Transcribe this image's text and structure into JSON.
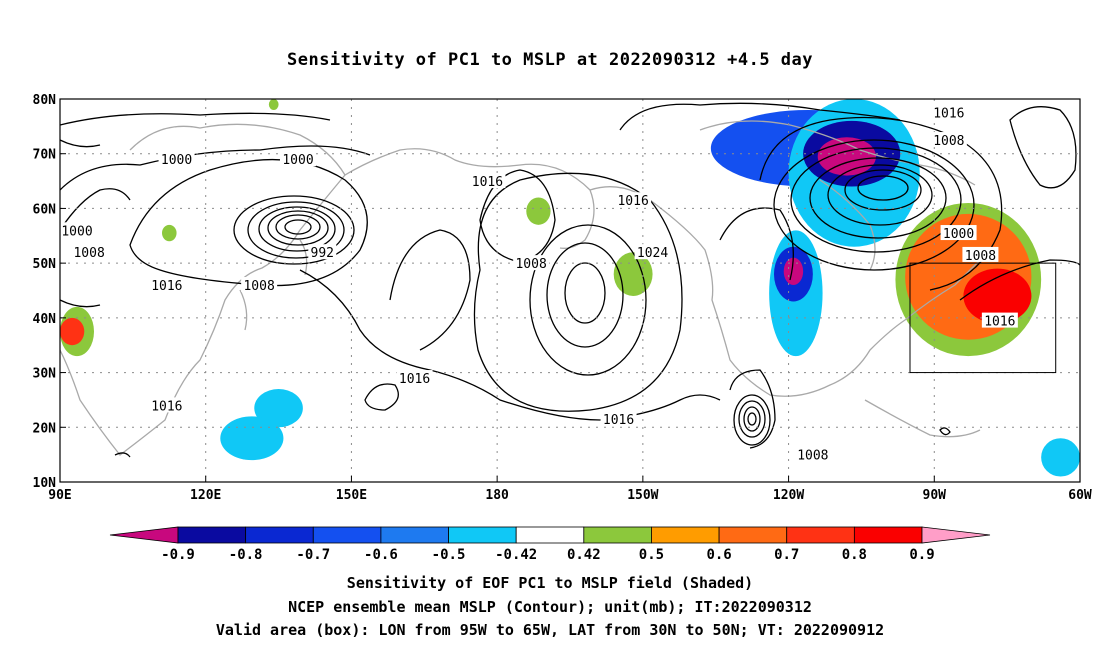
{
  "title": "Sensitivity of PC1 to MSLP at 2022090312 +4.5 day",
  "map": {
    "lon_range": [
      90,
      300
    ],
    "lat_range": [
      10,
      80
    ],
    "lon_ticks": [
      {
        "lon": 90,
        "label": "90E"
      },
      {
        "lon": 120,
        "label": "120E"
      },
      {
        "lon": 150,
        "label": "150E"
      },
      {
        "lon": 180,
        "label": "180"
      },
      {
        "lon": 210,
        "label": "150W"
      },
      {
        "lon": 240,
        "label": "120W"
      },
      {
        "lon": 270,
        "label": "90W"
      },
      {
        "lon": 300,
        "label": "60W"
      }
    ],
    "lat_ticks": [
      {
        "lat": 10,
        "label": "10N"
      },
      {
        "lat": 20,
        "label": "20N"
      },
      {
        "lat": 30,
        "label": "30N"
      },
      {
        "lat": 40,
        "label": "40N"
      },
      {
        "lat": 50,
        "label": "50N"
      },
      {
        "lat": 60,
        "label": "60N"
      },
      {
        "lat": 70,
        "label": "70N"
      },
      {
        "lat": 80,
        "label": "80N"
      }
    ],
    "valid_box": {
      "lon": [
        265,
        295
      ],
      "lat": [
        30,
        50
      ]
    },
    "grid_lines": true,
    "contour_labels": [
      {
        "text": "1016",
        "lon": 273,
        "lat": 77.5
      },
      {
        "text": "1008",
        "lon": 273,
        "lat": 72.5
      },
      {
        "text": "1000",
        "lon": 114,
        "lat": 69
      },
      {
        "text": "1000",
        "lon": 139,
        "lat": 69
      },
      {
        "text": "1016",
        "lon": 178,
        "lat": 65
      },
      {
        "text": "1016",
        "lon": 208,
        "lat": 61.5
      },
      {
        "text": "1000",
        "lon": 93.5,
        "lat": 56
      },
      {
        "text": "1008",
        "lon": 96,
        "lat": 52
      },
      {
        "text": "992",
        "lon": 144,
        "lat": 52
      },
      {
        "text": "1024",
        "lon": 212,
        "lat": 52
      },
      {
        "text": "1008",
        "lon": 187,
        "lat": 50
      },
      {
        "text": "1016",
        "lon": 112,
        "lat": 46
      },
      {
        "text": "1008",
        "lon": 131,
        "lat": 46
      },
      {
        "text": "1000",
        "lon": 275,
        "lat": 55.5
      },
      {
        "text": "1008",
        "lon": 279.5,
        "lat": 51.5
      },
      {
        "text": "1016",
        "lon": 283.5,
        "lat": 39.5
      },
      {
        "text": "1016",
        "lon": 163,
        "lat": 29
      },
      {
        "text": "1016",
        "lon": 112,
        "lat": 24
      },
      {
        "text": "1016",
        "lon": 205,
        "lat": 21.5
      },
      {
        "text": "1008",
        "lon": 245,
        "lat": 15
      }
    ],
    "shaded_areas": [
      {
        "level": -0.6,
        "lon": [
          224,
          264
        ],
        "lat": [
          64,
          78
        ]
      },
      {
        "level": -0.42,
        "lon": [
          240,
          267
        ],
        "lat": [
          53,
          80
        ]
      },
      {
        "level": -0.8,
        "lon": [
          243,
          263
        ],
        "lat": [
          64,
          76
        ]
      },
      {
        "level": -0.9,
        "lon": [
          246,
          258
        ],
        "lat": [
          66,
          73
        ]
      },
      {
        "level": -0.42,
        "lon": [
          236,
          247
        ],
        "lat": [
          33,
          56
        ]
      },
      {
        "level": -0.7,
        "lon": [
          237,
          245
        ],
        "lat": [
          43,
          53
        ]
      },
      {
        "level": -0.9,
        "lon": [
          239,
          243
        ],
        "lat": [
          46,
          51
        ]
      },
      {
        "level": 0.42,
        "lon": [
          262,
          292
        ],
        "lat": [
          33,
          61
        ]
      },
      {
        "level": 0.6,
        "lon": [
          264,
          290
        ],
        "lat": [
          36,
          59
        ]
      },
      {
        "level": 0.8,
        "lon": [
          276,
          290
        ],
        "lat": [
          39,
          49
        ]
      },
      {
        "level": -0.42,
        "lon": [
          130,
          140
        ],
        "lat": [
          20,
          27
        ]
      },
      {
        "level": -0.42,
        "lon": [
          123,
          136
        ],
        "lat": [
          14,
          22
        ]
      },
      {
        "level": 0.42,
        "lon": [
          90,
          97
        ],
        "lat": [
          33,
          42
        ]
      },
      {
        "level": 0.7,
        "lon": [
          90,
          95
        ],
        "lat": [
          35,
          40
        ]
      },
      {
        "level": 0.42,
        "lon": [
          204,
          212
        ],
        "lat": [
          44,
          52
        ]
      },
      {
        "level": 0.42,
        "lon": [
          186,
          191
        ],
        "lat": [
          57,
          62
        ]
      },
      {
        "level": -0.42,
        "lon": [
          292,
          300
        ],
        "lat": [
          11,
          18
        ]
      },
      {
        "level": 0.42,
        "lon": [
          111,
          114
        ],
        "lat": [
          54,
          57
        ]
      },
      {
        "level": 0.42,
        "lon": [
          133,
          135
        ],
        "lat": [
          78,
          80
        ]
      }
    ]
  },
  "colorbar": {
    "colors": [
      "#c8087e",
      "#0a0aa0",
      "#0a28d2",
      "#1450f0",
      "#1e7af0",
      "#10c8f6",
      "#ffffff",
      "#8cc83c",
      "#ff9c00",
      "#ff6a14",
      "#ff3214",
      "#fa0000",
      "#ff9ec8"
    ],
    "labels": [
      "-0.9",
      "-0.8",
      "-0.7",
      "-0.6",
      "-0.5",
      "-0.42",
      "0.42",
      "0.5",
      "0.6",
      "0.7",
      "0.8",
      "0.9"
    ]
  },
  "captions": {
    "line1": "Sensitivity of EOF PC1 to MSLP field (Shaded)",
    "line2": "NCEP ensemble mean MSLP (Contour); unit(mb); IT:2022090312",
    "line3": "Valid area (box): LON from 95W to 65W, LAT from 30N to 50N; VT: 2022090912"
  }
}
